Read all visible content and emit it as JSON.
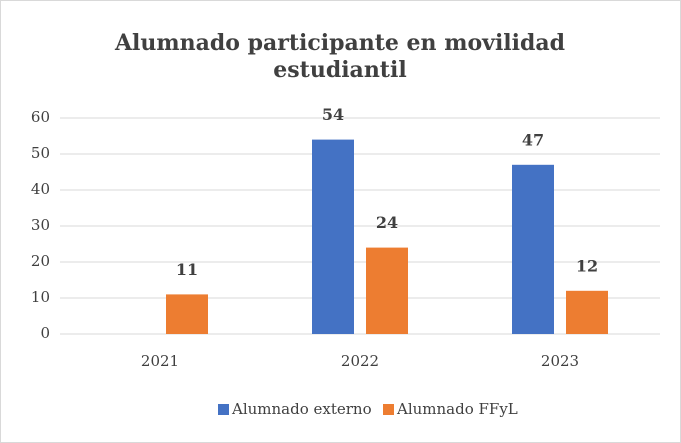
{
  "chart_data": {
    "type": "bar",
    "title": "Alumnado participante en movilidad estudiantil",
    "categories": [
      "2021",
      "2022",
      "2023"
    ],
    "series": [
      {
        "name": "Alumnado externo",
        "color": "#4472c4",
        "values": [
          null,
          54,
          47
        ]
      },
      {
        "name": "Alumnado FFyL",
        "color": "#ed7d31",
        "values": [
          11,
          24,
          12
        ]
      }
    ],
    "ylim": [
      0,
      60
    ],
    "yticks": [
      0,
      10,
      20,
      30,
      40,
      50,
      60
    ],
    "grid": true,
    "legend": "bottom"
  }
}
